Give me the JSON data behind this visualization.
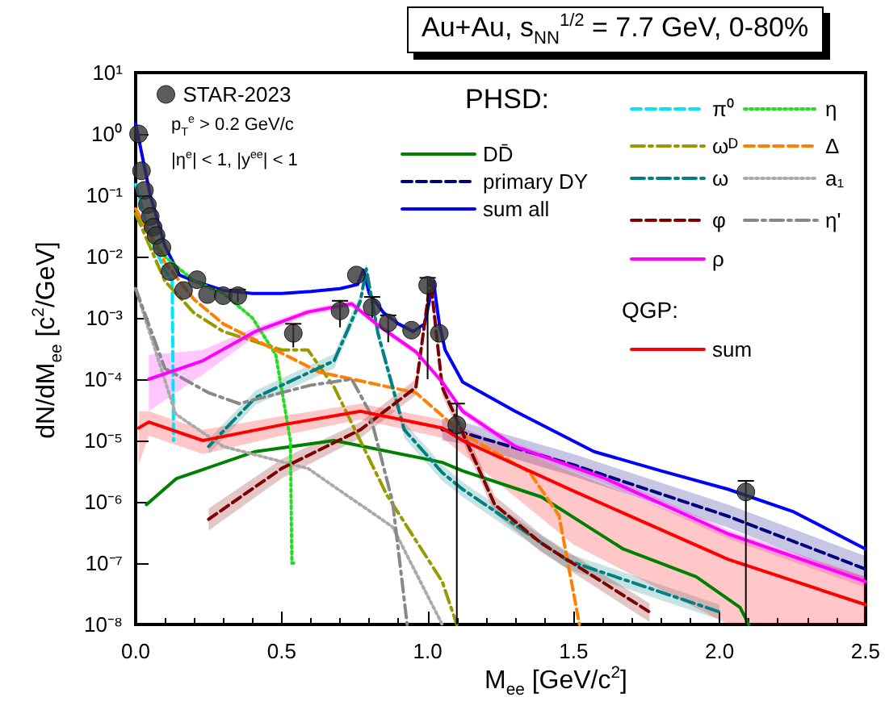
{
  "chart_data": {
    "type": "line",
    "title": "Au+Au, s$_{NN}$$^{1/2}$ = 7.7 GeV, 0-80%",
    "xlabel": "M$_{ee}$ [GeV/c$^{2}$]",
    "ylabel": "dN/dM$_{ee}$ [c$^{2}$/GeV]",
    "annotations": [
      "p$_{T}$$^{e}$ > 0.2 GeV/c",
      "|η$^{e}$| < 1, |y$^{ee}$| < 1",
      "PHSD:",
      "QGP:"
    ],
    "log": "y",
    "grid": false,
    "legend": "top right",
    "marker": "none",
    "xlim": [
      0,
      2.5
    ],
    "xticks": [
      {
        "value": 0,
        "label": "0.0"
      },
      {
        "value": 0.5,
        "label": "0.5"
      },
      {
        "value": 1,
        "label": "1.0"
      },
      {
        "value": 1.5,
        "label": "1.5"
      },
      {
        "value": 2,
        "label": "2.0"
      },
      {
        "value": 2.5,
        "label": "2.5"
      }
    ],
    "ylim": [
      1e-08,
      10
    ],
    "yticks": [
      {
        "value": 1e-08,
        "label": "10⁻⁸"
      },
      {
        "value": 1e-07,
        "label": "10⁻⁷"
      },
      {
        "value": 1e-06,
        "label": "10⁻⁶"
      },
      {
        "value": 1e-05,
        "label": "10⁻⁵"
      },
      {
        "value": 0.0001,
        "label": "10⁻⁴"
      },
      {
        "value": 0.001,
        "label": "10⁻³"
      },
      {
        "value": 0.01,
        "label": "10⁻²"
      },
      {
        "value": 0.1,
        "label": "10⁻¹"
      },
      {
        "value": 1,
        "label": "10⁰"
      },
      {
        "value": 10,
        "label": "10¹"
      }
    ],
    "series": [
      {
        "name": "STAR-2023",
        "type": "scatter",
        "marker": "circle",
        "color": "#333333",
        "x": [
          0.01,
          0.02,
          0.03,
          0.04,
          0.05,
          0.06,
          0.07,
          0.09,
          0.118,
          0.164,
          0.21,
          0.246,
          0.3,
          0.35,
          0.54,
          0.7,
          0.756,
          0.81,
          0.865,
          0.945,
          1.0,
          1.04,
          1.1,
          2.09
        ],
        "values": [
          1.0,
          0.25,
          0.12,
          0.07,
          0.045,
          0.03,
          0.022,
          0.014,
          0.0057,
          0.0028,
          0.0042,
          0.0024,
          0.0023,
          0.0023,
          0.00056,
          0.0013,
          0.005,
          0.0015,
          0.00083,
          0.00063,
          0.0034,
          0.00056,
          1.8e-05,
          1.45e-06
        ],
        "errors": [
          null,
          null,
          null,
          null,
          null,
          null,
          null,
          null,
          null,
          null,
          null,
          null,
          null,
          [
            0.0018,
            0.0029
          ],
          [
            0.00033,
            0.0008
          ],
          [
            0.0007,
            0.0019
          ],
          null,
          [
            0.001,
            0.0022
          ],
          [
            0.0004,
            0.0011
          ],
          null,
          [
            0.0001,
            0.0045
          ],
          null,
          [
            1e-08,
            4e-05
          ],
          [
            1e-08,
            2.2e-06
          ]
        ]
      },
      {
        "name": "DD̄",
        "color": "#008000",
        "line_style": "solid",
        "x": [
          0.037,
          0.14,
          0.41,
          0.68,
          1.05,
          1.12,
          1.39,
          1.67,
          1.92,
          2.07,
          2.1
        ],
        "values": [
          9e-07,
          2.4e-06,
          6.6e-06,
          1e-05,
          4.4e-06,
          3.2e-06,
          1.2e-06,
          1.7e-07,
          6e-08,
          1.9e-08,
          1e-08
        ]
      },
      {
        "name": "primary DY",
        "color": "#000080",
        "line_style": "dashed",
        "x": [
          1.05,
          1.12,
          1.5,
          2.03,
          2.5
        ],
        "values": [
          1.5e-05,
          1.35e-05,
          4e-06,
          5.8e-07,
          8e-08
        ],
        "lower": [
          1e-05,
          9e-06,
          2.6e-06,
          3.8e-07,
          5e-08
        ],
        "upper": [
          2.3e-05,
          2e-05,
          6e-06,
          9e-07,
          1.3e-07
        ]
      },
      {
        "name": "sum all",
        "color": "#0000ff",
        "line_style": "solid",
        "x": [
          0.0,
          0.02,
          0.05,
          0.1,
          0.15,
          0.2,
          0.3,
          0.4,
          0.5,
          0.6,
          0.7,
          0.76,
          0.78,
          0.8,
          0.85,
          0.9,
          0.95,
          0.99,
          1.02,
          1.04,
          1.06,
          1.12,
          1.3,
          1.57,
          1.8,
          2.03,
          2.25,
          2.5
        ],
        "values": [
          1.5,
          0.5,
          0.1,
          0.015,
          0.005,
          0.004,
          0.0028,
          0.0025,
          0.0025,
          0.0027,
          0.003,
          0.0035,
          0.006,
          0.0025,
          0.0012,
          0.0008,
          0.0006,
          0.0008,
          0.004,
          0.0008,
          0.0003,
          9e-05,
          3e-05,
          6.6e-06,
          3.2e-06,
          1.6e-06,
          7e-07,
          1.7e-07
        ]
      },
      {
        "name": "π⁰",
        "color": "#00e5ff",
        "line_style": "dashed",
        "x": [
          0.0,
          0.05,
          0.1,
          0.125,
          0.13
        ],
        "values": [
          0.15,
          0.02,
          0.006,
          0.004,
          1e-05
        ]
      },
      {
        "name": "η",
        "color": "#22dd22",
        "line_style": "dotted",
        "x": [
          0.0,
          0.1,
          0.2,
          0.3,
          0.4,
          0.48,
          0.53,
          0.535,
          0.545
        ],
        "values": [
          0.05,
          0.01,
          0.004,
          0.0025,
          0.001,
          0.00025,
          1e-05,
          1e-07,
          1e-07
        ]
      },
      {
        "name": "ωᴰ",
        "color": "#999900",
        "line_style": "dashdot",
        "x": [
          0.0,
          0.1,
          0.2,
          0.3,
          0.5,
          0.59,
          0.68,
          0.86,
          1.05,
          1.1
        ],
        "values": [
          0.05,
          0.004,
          0.0012,
          0.0006,
          0.0003,
          0.0003,
          7.4e-05,
          1.3e-06,
          5e-08,
          1e-08
        ]
      },
      {
        "name": "Δ",
        "color": "#ff8000",
        "line_style": "dashed",
        "x": [
          0.0,
          0.1,
          0.2,
          0.3,
          0.63,
          0.96,
          1.12,
          1.35,
          1.45,
          1.52
        ],
        "values": [
          0.06,
          0.008,
          0.002,
          0.0008,
          0.00013,
          6e-05,
          1.3e-05,
          3e-06,
          6e-07,
          1e-08
        ]
      },
      {
        "name": "ω",
        "color": "#008080",
        "line_style": "dashdot",
        "x": [
          0.25,
          0.41,
          0.68,
          0.77,
          0.79,
          0.83,
          0.92,
          1.05,
          1.12,
          1.48,
          2.0
        ],
        "values": [
          8e-06,
          5e-05,
          0.0002,
          0.0019,
          0.0063,
          0.00056,
          1.5e-05,
          3e-06,
          1.6e-06,
          1.1e-07,
          1.6e-08
        ],
        "lower": [
          6e-06,
          3.8e-05,
          0.00015,
          0.0015,
          0.005,
          0.00043,
          1.1e-05,
          2.2e-06,
          1.2e-06,
          8e-08,
          1.2e-08
        ],
        "upper": [
          1.05e-05,
          6.5e-05,
          0.00026,
          0.0025,
          0.008,
          0.0007,
          2e-05,
          4e-06,
          2.1e-06,
          1.45e-07,
          2.1e-08
        ]
      },
      {
        "name": "a₁",
        "color": "#aaaaaa",
        "line_style": "dotted",
        "x": [
          0.0,
          0.137,
          0.3,
          0.59,
          0.88,
          1.05
        ],
        "values": [
          0.003,
          2.7e-05,
          8e-06,
          3.5e-06,
          3.9e-07,
          1e-08
        ]
      },
      {
        "name": "φ",
        "color": "#800000",
        "line_style": "dashed",
        "x": [
          0.25,
          0.5,
          0.77,
          0.96,
          1.01,
          1.05,
          1.23,
          1.39,
          1.76
        ],
        "values": [
          5.2e-07,
          3.5e-06,
          1.5e-05,
          7.4e-05,
          0.0042,
          7.4e-05,
          9e-07,
          2.1e-07,
          1.6e-08
        ],
        "lower": [
          3.4e-07,
          2.4e-06,
          1.1e-05,
          5.5e-05,
          0.0033,
          5.5e-05,
          6.5e-07,
          1.5e-07,
          1.1e-08
        ],
        "upper": [
          7.8e-07,
          5e-06,
          2e-05,
          0.0001,
          0.0053,
          0.0001,
          1.25e-06,
          2.9e-07,
          2.2e-08
        ]
      },
      {
        "name": "η'",
        "color": "#888888",
        "line_style": "dashdot",
        "x": [
          0.0,
          0.1,
          0.25,
          0.355,
          0.6,
          0.74,
          0.8,
          0.88,
          0.93
        ],
        "values": [
          0.003,
          0.00015,
          6e-05,
          4e-05,
          8e-05,
          0.0001,
          3e-05,
          1e-06,
          1e-08
        ]
      },
      {
        "name": "ρ",
        "color": "#ff00ff",
        "line_style": "solid",
        "x": [
          0.045,
          0.23,
          0.41,
          0.59,
          0.74,
          0.83,
          0.96,
          1.05,
          1.12,
          1.3,
          1.6,
          2.03,
          2.5
        ],
        "values": [
          0.0001,
          0.0002,
          0.0006,
          0.00125,
          0.0017,
          0.00076,
          0.00028,
          9e-05,
          3e-05,
          8e-06,
          2.5e-06,
          3e-07,
          5e-08
        ],
        "lower": [
          3e-05,
          0.00012,
          0.0005,
          0.0011,
          0.0015,
          0.00068,
          0.00025,
          8e-05,
          2.6e-05,
          7e-06,
          2.1e-06,
          2.5e-07,
          4e-08
        ],
        "upper": [
          0.00025,
          0.0003,
          0.0007,
          0.0014,
          0.0019,
          0.00085,
          0.00031,
          0.0001,
          3.4e-05,
          9e-06,
          2.9e-06,
          3.5e-07,
          6e-08
        ]
      },
      {
        "name": "sum",
        "color": "#ff0000",
        "line_style": "solid",
        "x": [
          0.01,
          0.045,
          0.23,
          0.5,
          0.77,
          1.05,
          1.12,
          1.5,
          2.03,
          2.5
        ],
        "values": [
          1.6e-05,
          2e-05,
          1e-05,
          1.8e-05,
          3e-05,
          1.6e-05,
          1e-05,
          1.5e-06,
          1.15e-07,
          2.1e-08
        ],
        "lower": [
          4e-06,
          1.2e-05,
          6e-06,
          1.2e-05,
          2.2e-05,
          1.1e-05,
          6e-06,
          2e-07,
          1e-08,
          1e-08
        ],
        "upper": [
          3e-05,
          3e-05,
          1.5e-05,
          2.5e-05,
          4e-05,
          2.2e-05,
          1.6e-05,
          3e-06,
          3e-07,
          6e-08
        ]
      }
    ]
  }
}
